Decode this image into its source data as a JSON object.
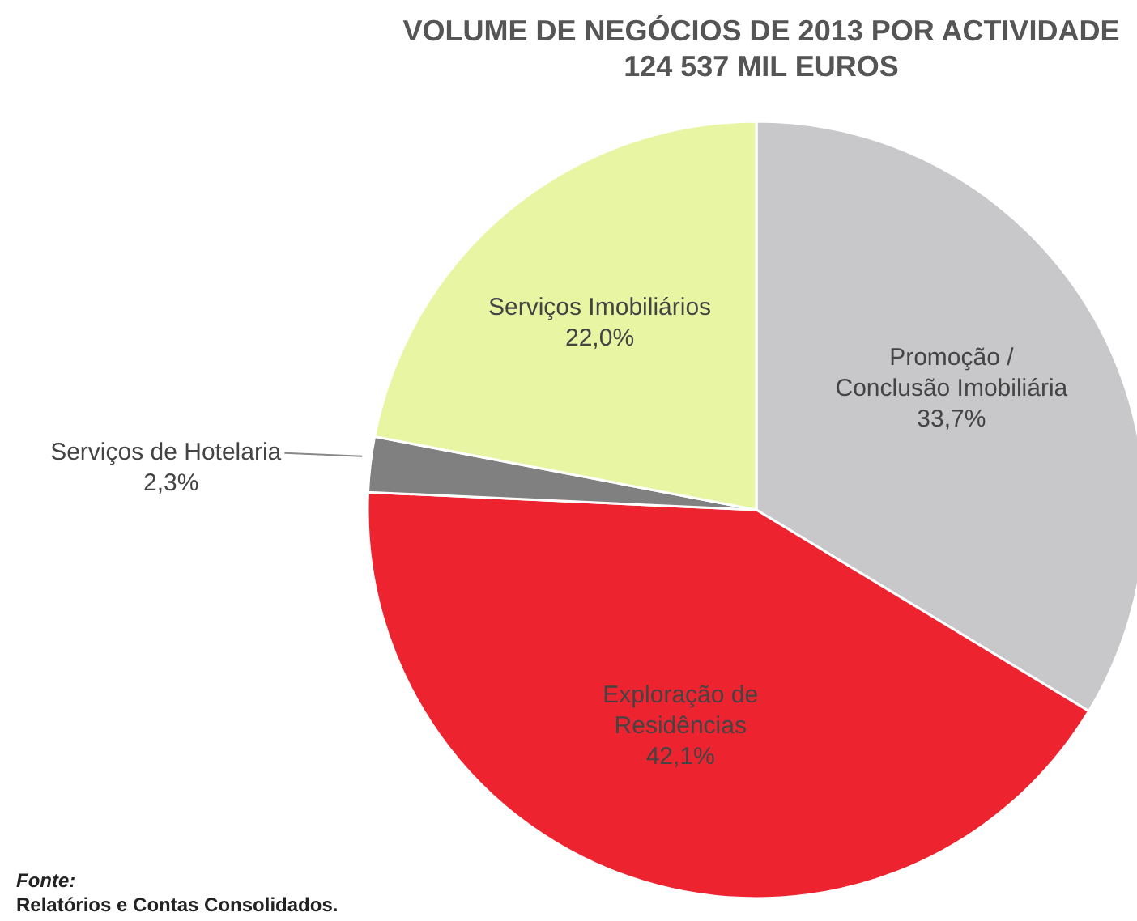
{
  "chart_data": {
    "type": "pie",
    "title": "VOLUME DE NEGÓCIOS DE 2013 POR ACTIVIDADE",
    "subtitle": "124 537 MIL EUROS",
    "categories": [
      "Promoção / Conclusão Imobiliária",
      "Exploração de Residências",
      "Serviços de Hotelaria",
      "Serviços Imobiliários"
    ],
    "values": [
      33.7,
      42.1,
      2.3,
      22.0
    ],
    "value_labels": [
      "33,7%",
      "42,1%",
      "2,3%",
      "22,0%"
    ],
    "colors": [
      "#c8c8ca",
      "#ee2330",
      "#808080",
      "#e8f5a2"
    ],
    "annotations": [
      "Fonte:",
      "Relatórios e Contas Consolidados."
    ]
  }
}
